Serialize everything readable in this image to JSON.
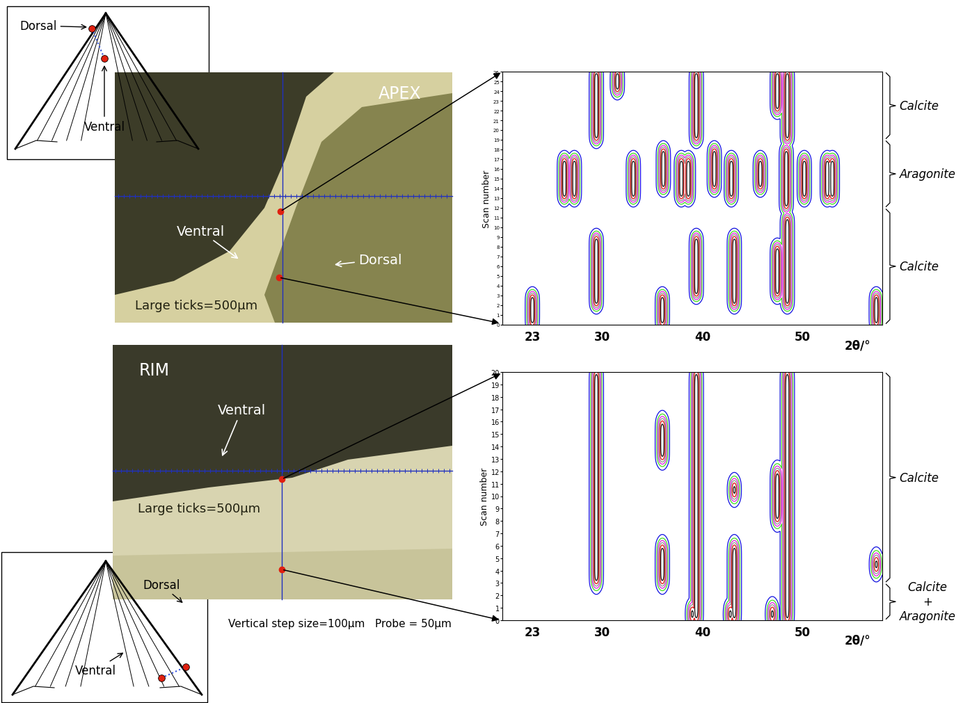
{
  "schematics": [
    {
      "labels": [
        "Dorsal",
        "Ventral"
      ]
    },
    {
      "labels": [
        "Dorsal",
        "Ventral"
      ]
    }
  ],
  "photos": [
    {
      "title": "APEX",
      "labels": [
        "Ventral",
        "Dorsal"
      ],
      "scale_note": "Large ticks=500μm"
    },
    {
      "title": "RIM",
      "labels": [
        "Ventral"
      ],
      "scale_note": "Large ticks=500μm"
    }
  ],
  "caption": "Vertical step size=100μm   Probe = 50μm",
  "chart_data": [
    {
      "type": "contour",
      "x_label": "2θ/°",
      "y_label": "Scan number",
      "xlim": [
        20,
        58
      ],
      "xticks": [
        23,
        30,
        40,
        50
      ],
      "ylim": [
        0,
        26
      ],
      "yticks": [
        0,
        1,
        2,
        3,
        4,
        5,
        6,
        7,
        8,
        9,
        10,
        11,
        12,
        13,
        14,
        15,
        16,
        17,
        18,
        19,
        20,
        21,
        22,
        23,
        24,
        25,
        26
      ],
      "peaks": [
        {
          "x": 23.0,
          "from": 0,
          "to": 3
        },
        {
          "x": 29.4,
          "from": 2,
          "to": 9
        },
        {
          "x": 36.0,
          "from": 0,
          "to": 3
        },
        {
          "x": 39.4,
          "from": 3,
          "to": 9
        },
        {
          "x": 43.2,
          "from": 2,
          "to": 9
        },
        {
          "x": 47.5,
          "from": 3,
          "to": 8
        },
        {
          "x": 48.5,
          "from": 2,
          "to": 11
        },
        {
          "x": 57.4,
          "from": 0,
          "to": 3
        },
        {
          "x": 26.2,
          "from": 13,
          "to": 17
        },
        {
          "x": 27.2,
          "from": 13,
          "to": 17
        },
        {
          "x": 33.1,
          "from": 13,
          "to": 17
        },
        {
          "x": 36.1,
          "from": 14,
          "to": 18
        },
        {
          "x": 37.9,
          "from": 13,
          "to": 17
        },
        {
          "x": 38.6,
          "from": 13,
          "to": 17
        },
        {
          "x": 41.2,
          "from": 14,
          "to": 18
        },
        {
          "x": 42.9,
          "from": 13,
          "to": 17
        },
        {
          "x": 45.8,
          "from": 14,
          "to": 17
        },
        {
          "x": 48.4,
          "from": 12,
          "to": 18
        },
        {
          "x": 50.2,
          "from": 13,
          "to": 17
        },
        {
          "x": 52.5,
          "from": 13,
          "to": 17
        },
        {
          "x": 53.0,
          "from": 13,
          "to": 17
        },
        {
          "x": 29.4,
          "from": 19,
          "to": 26
        },
        {
          "x": 31.5,
          "from": 24,
          "to": 26
        },
        {
          "x": 39.4,
          "from": 19,
          "to": 26
        },
        {
          "x": 47.5,
          "from": 22,
          "to": 26
        },
        {
          "x": 48.5,
          "from": 19,
          "to": 26
        }
      ],
      "phases": [
        {
          "label": "Calcite",
          "from": 19,
          "to": 26
        },
        {
          "label": "Aragonite",
          "from": 12,
          "to": 19
        },
        {
          "label": "Calcite",
          "from": 0,
          "to": 12
        }
      ]
    },
    {
      "type": "contour",
      "x_label": "2θ/°",
      "y_label": "Scan number",
      "xlim": [
        20,
        58
      ],
      "xticks": [
        23,
        30,
        40,
        50
      ],
      "ylim": [
        0,
        20
      ],
      "yticks": [
        0,
        1,
        2,
        3,
        4,
        5,
        6,
        7,
        8,
        9,
        10,
        11,
        12,
        13,
        14,
        15,
        16,
        17,
        18,
        19,
        20
      ],
      "peaks": [
        {
          "x": 29.4,
          "from": 3,
          "to": 20
        },
        {
          "x": 36.0,
          "from": 3,
          "to": 6
        },
        {
          "x": 36.0,
          "from": 13,
          "to": 16
        },
        {
          "x": 39.4,
          "from": 0,
          "to": 20
        },
        {
          "x": 43.2,
          "from": 0,
          "to": 6
        },
        {
          "x": 43.2,
          "from": 10,
          "to": 11
        },
        {
          "x": 47.5,
          "from": 8,
          "to": 12
        },
        {
          "x": 48.5,
          "from": 0,
          "to": 20
        },
        {
          "x": 57.4,
          "from": 4,
          "to": 5
        },
        {
          "x": 47.0,
          "from": 0,
          "to": 1
        },
        {
          "x": 39.0,
          "from": 0,
          "to": 1
        },
        {
          "x": 42.8,
          "from": 0,
          "to": 1
        }
      ],
      "phases": [
        {
          "label": "Calcite",
          "from": 3,
          "to": 20
        },
        {
          "label": "Calcite\n+\nAragonite",
          "from": 0,
          "to": 3
        }
      ]
    }
  ]
}
